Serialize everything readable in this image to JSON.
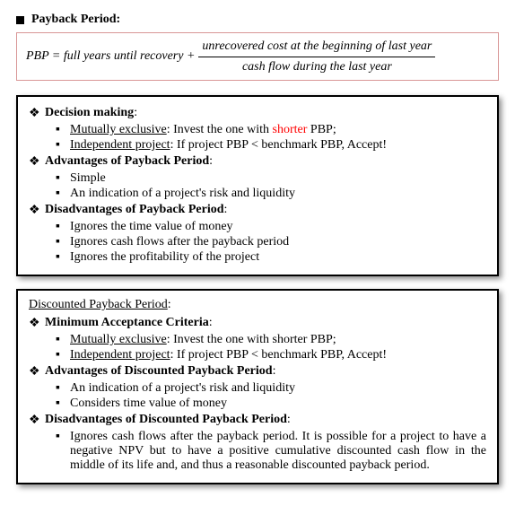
{
  "title": "Payback Period:",
  "formula": {
    "lhs": "PBP = full years until recovery +",
    "numerator": "unrecovered cost  at the beginning of last year",
    "denominator": "cash flow during the last year"
  },
  "box1": {
    "s1_title": "Decision making",
    "s1_i1_ul": "Mutually exclusive",
    "s1_i1_rest_a": ": Invest the one with ",
    "s1_i1_red": "shorter",
    "s1_i1_rest_b": " PBP;",
    "s1_i2_ul": "Independent project",
    "s1_i2_rest": ": If project PBP < benchmark PBP, Accept!",
    "s2_title": "Advantages of Payback Period",
    "s2_i1": "Simple",
    "s2_i2": "An indication of a project's risk and liquidity",
    "s3_title": "Disadvantages of Payback Period",
    "s3_i1": "Ignores the time value of money",
    "s3_i2": "Ignores cash flows after the payback period",
    "s3_i3": "Ignores the profitability of the project"
  },
  "box2": {
    "heading": "Discounted Payback Period",
    "s1_title": "Minimum Acceptance Criteria",
    "s1_i1_ul": "Mutually exclusive",
    "s1_i1_rest": ": Invest the one with shorter PBP;",
    "s1_i2_ul": "Independent project",
    "s1_i2_rest": ": If project PBP < benchmark PBP, Accept!",
    "s2_title": "Advantages of Discounted Payback Period",
    "s2_i1": "An indication of a project's risk and liquidity",
    "s2_i2": "Considers time value of money",
    "s3_title": "Disadvantages of Discounted Payback Period",
    "s3_i1": "Ignores cash flows after the payback period. It is possible for a project to have a negative NPV but to have a positive cumulative discounted cash flow in the middle of its life and, and thus a reasonable discounted payback period."
  }
}
